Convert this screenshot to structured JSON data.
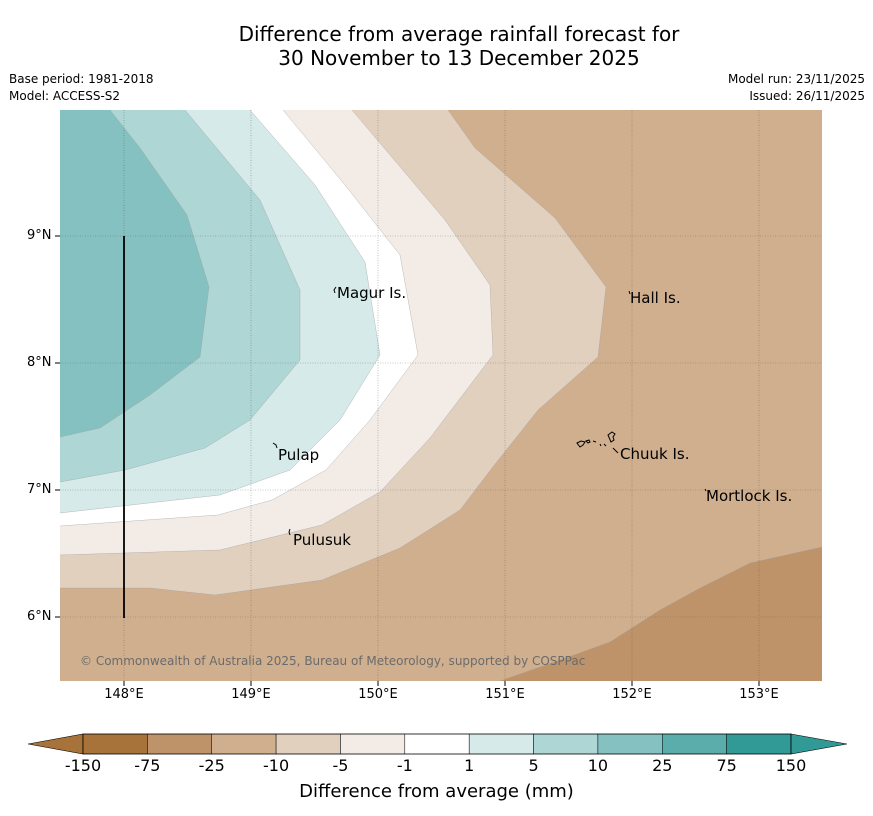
{
  "header": {
    "title_line1": "Difference from average rainfall forecast for",
    "title_line2": "30 November to 13 December 2025",
    "base_period": "Base period: 1981-2018",
    "model": "Model: ACCESS-S2",
    "model_run": "Model run: 23/11/2025",
    "issued": "Issued: 26/11/2025"
  },
  "map": {
    "lat_labels": [
      "9°N",
      "8°N",
      "7°N",
      "6°N"
    ],
    "lon_labels": [
      "148°E",
      "149°E",
      "150°E",
      "151°E",
      "152°E",
      "153°E"
    ],
    "places": [
      "Magur Is.",
      "Hall Is.",
      "Pulap",
      "Chuuk Is.",
      "Mortlock Is.",
      "Pulusuk"
    ],
    "copyright": "© Commonwealth of Australia 2025, Bureau of Meteorology, supported by COSPPac"
  },
  "colorbar": {
    "ticks": [
      "-150",
      "-75",
      "-25",
      "-10",
      "-5",
      "-1",
      "1",
      "5",
      "10",
      "25",
      "75",
      "150"
    ],
    "colors": [
      "#a8733a",
      "#be9369",
      "#d0af8f",
      "#e2d0bf",
      "#f3ece6",
      "#ffffff",
      "#d5eae9",
      "#add6d5",
      "#84c1c0",
      "#5aadab",
      "#319a97"
    ],
    "low_color": "#a8733a",
    "high_color": "#319a97",
    "label": "Difference from average (mm)"
  }
}
